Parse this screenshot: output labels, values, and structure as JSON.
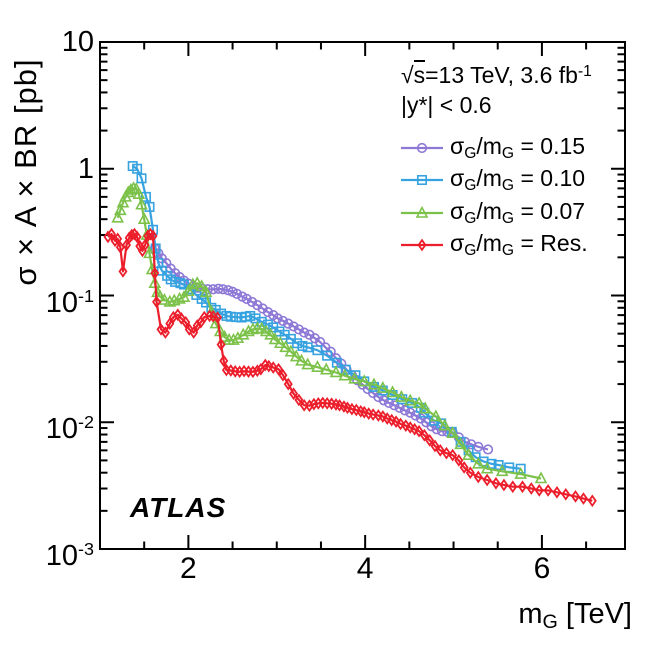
{
  "chart_data": {
    "type": "line",
    "title": "",
    "xlabel": "m_{G} [TeV]",
    "ylabel": "σ × A × BR [pb]",
    "x_scale": "linear",
    "y_scale": "log",
    "xlim": [
      1.0,
      6.94
    ],
    "ylim": [
      0.001,
      10
    ],
    "grid": false,
    "legend_position": "top-right-inside",
    "x_major_ticks": [
      2,
      4,
      6
    ],
    "x_tick_labels": [
      "2",
      "4",
      "6"
    ],
    "x_minor_tick_step": 0.5,
    "y_major_ticks": [
      10,
      1,
      0.1,
      0.01,
      0.001
    ],
    "y_tick_labels": [
      "10",
      "1",
      "10^{-1}",
      "10^{-2}",
      "10^{-3}"
    ],
    "annotations": {
      "experiment": "ATLAS",
      "info_line_1": {
        "sqrt_symbol": "√",
        "sqrt_arg": "s",
        "rest": "=13 TeV, 3.6 fb^{-1}"
      },
      "info_line_2": "|y*| < 0.6"
    },
    "series": [
      {
        "id": "sigma-0p15",
        "label": "σ_{G}/m_{G} = 0.15",
        "color": "#8d78d6",
        "marker": "circle",
        "points": [
          [
            1.62,
            0.235
          ],
          [
            1.66,
            0.215
          ],
          [
            1.7,
            0.196
          ],
          [
            1.75,
            0.18
          ],
          [
            1.8,
            0.163
          ],
          [
            1.85,
            0.15
          ],
          [
            1.9,
            0.14
          ],
          [
            1.95,
            0.131
          ],
          [
            2.0,
            0.124
          ],
          [
            2.05,
            0.118
          ],
          [
            2.1,
            0.115
          ],
          [
            2.16,
            0.113
          ],
          [
            2.22,
            0.112
          ],
          [
            2.28,
            0.112
          ],
          [
            2.34,
            0.113
          ],
          [
            2.39,
            0.112
          ],
          [
            2.45,
            0.11
          ],
          [
            2.5,
            0.107
          ],
          [
            2.55,
            0.103
          ],
          [
            2.61,
            0.098
          ],
          [
            2.66,
            0.094
          ],
          [
            2.72,
            0.089
          ],
          [
            2.78,
            0.084
          ],
          [
            2.84,
            0.079
          ],
          [
            2.9,
            0.074
          ],
          [
            2.96,
            0.07
          ],
          [
            3.01,
            0.066
          ],
          [
            3.07,
            0.063
          ],
          [
            3.13,
            0.06
          ],
          [
            3.19,
            0.057
          ],
          [
            3.25,
            0.054
          ],
          [
            3.31,
            0.051
          ],
          [
            3.37,
            0.049
          ],
          [
            3.43,
            0.046
          ],
          [
            3.49,
            0.043
          ],
          [
            3.55,
            0.039
          ],
          [
            3.61,
            0.036
          ],
          [
            3.67,
            0.032
          ],
          [
            3.73,
            0.029
          ],
          [
            3.79,
            0.026
          ],
          [
            3.85,
            0.0235
          ],
          [
            3.91,
            0.0215
          ],
          [
            3.97,
            0.0198
          ],
          [
            4.03,
            0.0183
          ],
          [
            4.09,
            0.017
          ],
          [
            4.15,
            0.0158
          ],
          [
            4.21,
            0.0149
          ],
          [
            4.27,
            0.0142
          ],
          [
            4.33,
            0.0136
          ],
          [
            4.39,
            0.013
          ],
          [
            4.45,
            0.0124
          ],
          [
            4.51,
            0.0119
          ],
          [
            4.57,
            0.0113
          ],
          [
            4.63,
            0.0107
          ],
          [
            4.69,
            0.01
          ],
          [
            4.75,
            0.0093
          ],
          [
            4.81,
            0.0088
          ],
          [
            4.87,
            0.0085
          ],
          [
            4.93,
            0.0084
          ],
          [
            4.99,
            0.0083
          ],
          [
            5.06,
            0.0076
          ],
          [
            5.13,
            0.007
          ],
          [
            5.2,
            0.0067
          ],
          [
            5.28,
            0.0064
          ],
          [
            5.39,
            0.0061
          ]
        ]
      },
      {
        "id": "sigma-0p10",
        "label": "σ_{G}/m_{G} = 0.10",
        "color": "#36a2e0",
        "marker": "square",
        "points": [
          [
            1.37,
            1.05
          ],
          [
            1.42,
            1.0
          ],
          [
            1.47,
            0.84
          ],
          [
            1.52,
            0.6
          ],
          [
            1.56,
            0.5
          ],
          [
            1.6,
            0.33
          ],
          [
            1.63,
            0.235
          ],
          [
            1.66,
            0.18
          ],
          [
            1.7,
            0.157
          ],
          [
            1.76,
            0.143
          ],
          [
            1.8,
            0.134
          ],
          [
            1.85,
            0.128
          ],
          [
            1.91,
            0.125
          ],
          [
            1.95,
            0.122
          ],
          [
            2.02,
            0.112
          ],
          [
            2.09,
            0.101
          ],
          [
            2.15,
            0.094
          ],
          [
            2.2,
            0.088
          ],
          [
            2.26,
            0.08
          ],
          [
            2.31,
            0.077
          ],
          [
            2.37,
            0.072
          ],
          [
            2.43,
            0.069
          ],
          [
            2.48,
            0.068
          ],
          [
            2.54,
            0.0675
          ],
          [
            2.6,
            0.067
          ],
          [
            2.65,
            0.068
          ],
          [
            2.7,
            0.069
          ],
          [
            2.76,
            0.066
          ],
          [
            2.83,
            0.062
          ],
          [
            2.9,
            0.059
          ],
          [
            2.96,
            0.056
          ],
          [
            3.03,
            0.052
          ],
          [
            3.09,
            0.049
          ],
          [
            3.16,
            0.0455
          ],
          [
            3.23,
            0.042
          ],
          [
            3.29,
            0.04
          ],
          [
            3.35,
            0.039
          ],
          [
            3.46,
            0.037
          ],
          [
            3.57,
            0.0335
          ],
          [
            3.68,
            0.0295
          ],
          [
            3.78,
            0.026
          ],
          [
            3.89,
            0.0235
          ],
          [
            3.99,
            0.021
          ],
          [
            4.1,
            0.019
          ],
          [
            4.2,
            0.0178
          ],
          [
            4.31,
            0.0164
          ],
          [
            4.42,
            0.0152
          ],
          [
            4.53,
            0.0142
          ],
          [
            4.63,
            0.013
          ],
          [
            4.67,
            0.0119
          ],
          [
            4.78,
            0.0103
          ],
          [
            4.86,
            0.0098
          ],
          [
            4.98,
            0.0084
          ],
          [
            5.08,
            0.007
          ],
          [
            5.17,
            0.006
          ],
          [
            5.25,
            0.0053
          ],
          [
            5.34,
            0.0049
          ],
          [
            5.43,
            0.0047
          ],
          [
            5.51,
            0.0046
          ],
          [
            5.63,
            0.0044
          ],
          [
            5.76,
            0.0043
          ]
        ]
      },
      {
        "id": "sigma-0p07",
        "label": "σ_{G}/m_{G} = 0.07",
        "color": "#7cc24a",
        "marker": "triangle",
        "points": [
          [
            1.2,
            0.41
          ],
          [
            1.23,
            0.47
          ],
          [
            1.26,
            0.54
          ],
          [
            1.29,
            0.6
          ],
          [
            1.32,
            0.65
          ],
          [
            1.35,
            0.68
          ],
          [
            1.38,
            0.7
          ],
          [
            1.41,
            0.69
          ],
          [
            1.44,
            0.63
          ],
          [
            1.47,
            0.52
          ],
          [
            1.5,
            0.4
          ],
          [
            1.53,
            0.3
          ],
          [
            1.56,
            0.215
          ],
          [
            1.59,
            0.16
          ],
          [
            1.62,
            0.125
          ],
          [
            1.65,
            0.106
          ],
          [
            1.68,
            0.098
          ],
          [
            1.73,
            0.092
          ],
          [
            1.79,
            0.089
          ],
          [
            1.84,
            0.091
          ],
          [
            1.9,
            0.094
          ],
          [
            1.95,
            0.097
          ],
          [
            2.0,
            0.108
          ],
          [
            2.05,
            0.122
          ],
          [
            2.1,
            0.125
          ],
          [
            2.15,
            0.118
          ],
          [
            2.2,
            0.106
          ],
          [
            2.26,
            0.074
          ],
          [
            2.31,
            0.06
          ],
          [
            2.36,
            0.052
          ],
          [
            2.41,
            0.047
          ],
          [
            2.46,
            0.0445
          ],
          [
            2.51,
            0.0445
          ],
          [
            2.56,
            0.046
          ],
          [
            2.62,
            0.049
          ],
          [
            2.68,
            0.052
          ],
          [
            2.73,
            0.054
          ],
          [
            2.78,
            0.055
          ],
          [
            2.83,
            0.0545
          ],
          [
            2.88,
            0.052
          ],
          [
            2.93,
            0.049
          ],
          [
            2.98,
            0.045
          ],
          [
            3.04,
            0.042
          ],
          [
            3.1,
            0.039
          ],
          [
            3.16,
            0.036
          ],
          [
            3.22,
            0.033
          ],
          [
            3.28,
            0.0305
          ],
          [
            3.35,
            0.0285
          ],
          [
            3.46,
            0.0272
          ],
          [
            3.56,
            0.026
          ],
          [
            3.67,
            0.0247
          ],
          [
            3.77,
            0.0233
          ],
          [
            3.88,
            0.022
          ],
          [
            3.99,
            0.021
          ],
          [
            4.1,
            0.0198
          ],
          [
            4.2,
            0.0186
          ],
          [
            4.31,
            0.0172
          ],
          [
            4.41,
            0.0158
          ],
          [
            4.51,
            0.0148
          ],
          [
            4.61,
            0.0141
          ],
          [
            4.68,
            0.0128
          ],
          [
            4.8,
            0.0111
          ],
          [
            4.9,
            0.0094
          ],
          [
            4.99,
            0.0082
          ],
          [
            5.08,
            0.0067
          ],
          [
            5.17,
            0.0055
          ],
          [
            5.28,
            0.0047
          ],
          [
            5.38,
            0.0043
          ],
          [
            5.55,
            0.0041
          ],
          [
            5.76,
            0.0039
          ],
          [
            5.99,
            0.0036
          ]
        ]
      },
      {
        "id": "sigma-res",
        "label": "σ_{G}/m_{G} = Res.",
        "color": "#ec1e2b",
        "marker": "diamond",
        "points": [
          [
            1.09,
            0.29
          ],
          [
            1.13,
            0.305
          ],
          [
            1.17,
            0.27
          ],
          [
            1.2,
            0.28
          ],
          [
            1.23,
            0.24
          ],
          [
            1.26,
            0.155
          ],
          [
            1.3,
            0.25
          ],
          [
            1.33,
            0.285
          ],
          [
            1.36,
            0.3
          ],
          [
            1.39,
            0.305
          ],
          [
            1.42,
            0.29
          ],
          [
            1.45,
            0.245
          ],
          [
            1.48,
            0.225
          ],
          [
            1.51,
            0.25
          ],
          [
            1.54,
            0.295
          ],
          [
            1.57,
            0.305
          ],
          [
            1.6,
            0.295
          ],
          [
            1.62,
            0.15
          ],
          [
            1.64,
            0.089
          ],
          [
            1.69,
            0.054
          ],
          [
            1.74,
            0.051
          ],
          [
            1.79,
            0.06
          ],
          [
            1.83,
            0.0675
          ],
          [
            1.88,
            0.0705
          ],
          [
            1.92,
            0.066
          ],
          [
            1.97,
            0.0615
          ],
          [
            2.01,
            0.054
          ],
          [
            2.06,
            0.051
          ],
          [
            2.1,
            0.058
          ],
          [
            2.14,
            0.0615
          ],
          [
            2.18,
            0.0675
          ],
          [
            2.24,
            0.069
          ],
          [
            2.28,
            0.0685
          ],
          [
            2.33,
            0.067
          ],
          [
            2.37,
            0.041
          ],
          [
            2.4,
            0.0305
          ],
          [
            2.43,
            0.0258
          ],
          [
            2.48,
            0.0256
          ],
          [
            2.53,
            0.0252
          ],
          [
            2.58,
            0.025
          ],
          [
            2.63,
            0.0253
          ],
          [
            2.68,
            0.0251
          ],
          [
            2.73,
            0.025
          ],
          [
            2.78,
            0.0255
          ],
          [
            2.82,
            0.0262
          ],
          [
            2.87,
            0.0283
          ],
          [
            2.91,
            0.0277
          ],
          [
            2.96,
            0.027
          ],
          [
            3.02,
            0.0262
          ],
          [
            3.07,
            0.0235
          ],
          [
            3.13,
            0.02
          ],
          [
            3.19,
            0.0168
          ],
          [
            3.25,
            0.015
          ],
          [
            3.31,
            0.0136
          ],
          [
            3.37,
            0.0135
          ],
          [
            3.42,
            0.0139
          ],
          [
            3.47,
            0.0141
          ],
          [
            3.52,
            0.0142
          ],
          [
            3.57,
            0.0141
          ],
          [
            3.62,
            0.014
          ],
          [
            3.67,
            0.0138
          ],
          [
            3.71,
            0.0136
          ],
          [
            3.76,
            0.0133
          ],
          [
            3.8,
            0.013
          ],
          [
            3.85,
            0.0127
          ],
          [
            3.9,
            0.0125
          ],
          [
            3.95,
            0.0122
          ],
          [
            3.99,
            0.012
          ],
          [
            4.04,
            0.0117
          ],
          [
            4.09,
            0.0115
          ],
          [
            4.15,
            0.0113
          ],
          [
            4.2,
            0.0111
          ],
          [
            4.25,
            0.0107
          ],
          [
            4.3,
            0.0104
          ],
          [
            4.35,
            0.0101
          ],
          [
            4.4,
            0.0097
          ],
          [
            4.46,
            0.0094
          ],
          [
            4.51,
            0.0091
          ],
          [
            4.56,
            0.0088
          ],
          [
            4.61,
            0.0085
          ],
          [
            4.67,
            0.0079
          ],
          [
            4.73,
            0.0072
          ],
          [
            4.79,
            0.0065
          ],
          [
            4.85,
            0.006
          ],
          [
            4.92,
            0.0057
          ],
          [
            4.99,
            0.0055
          ],
          [
            5.06,
            0.005
          ],
          [
            5.12,
            0.0044
          ],
          [
            5.19,
            0.004
          ],
          [
            5.28,
            0.0037
          ],
          [
            5.38,
            0.0035
          ],
          [
            5.48,
            0.0033
          ],
          [
            5.57,
            0.0032
          ],
          [
            5.67,
            0.0031
          ],
          [
            5.78,
            0.0031
          ],
          [
            5.88,
            0.003
          ],
          [
            5.97,
            0.0029
          ],
          [
            6.07,
            0.0029
          ],
          [
            6.17,
            0.0028
          ],
          [
            6.27,
            0.0027
          ],
          [
            6.38,
            0.0026
          ],
          [
            6.47,
            0.0025
          ],
          [
            6.57,
            0.0024
          ]
        ]
      }
    ]
  }
}
